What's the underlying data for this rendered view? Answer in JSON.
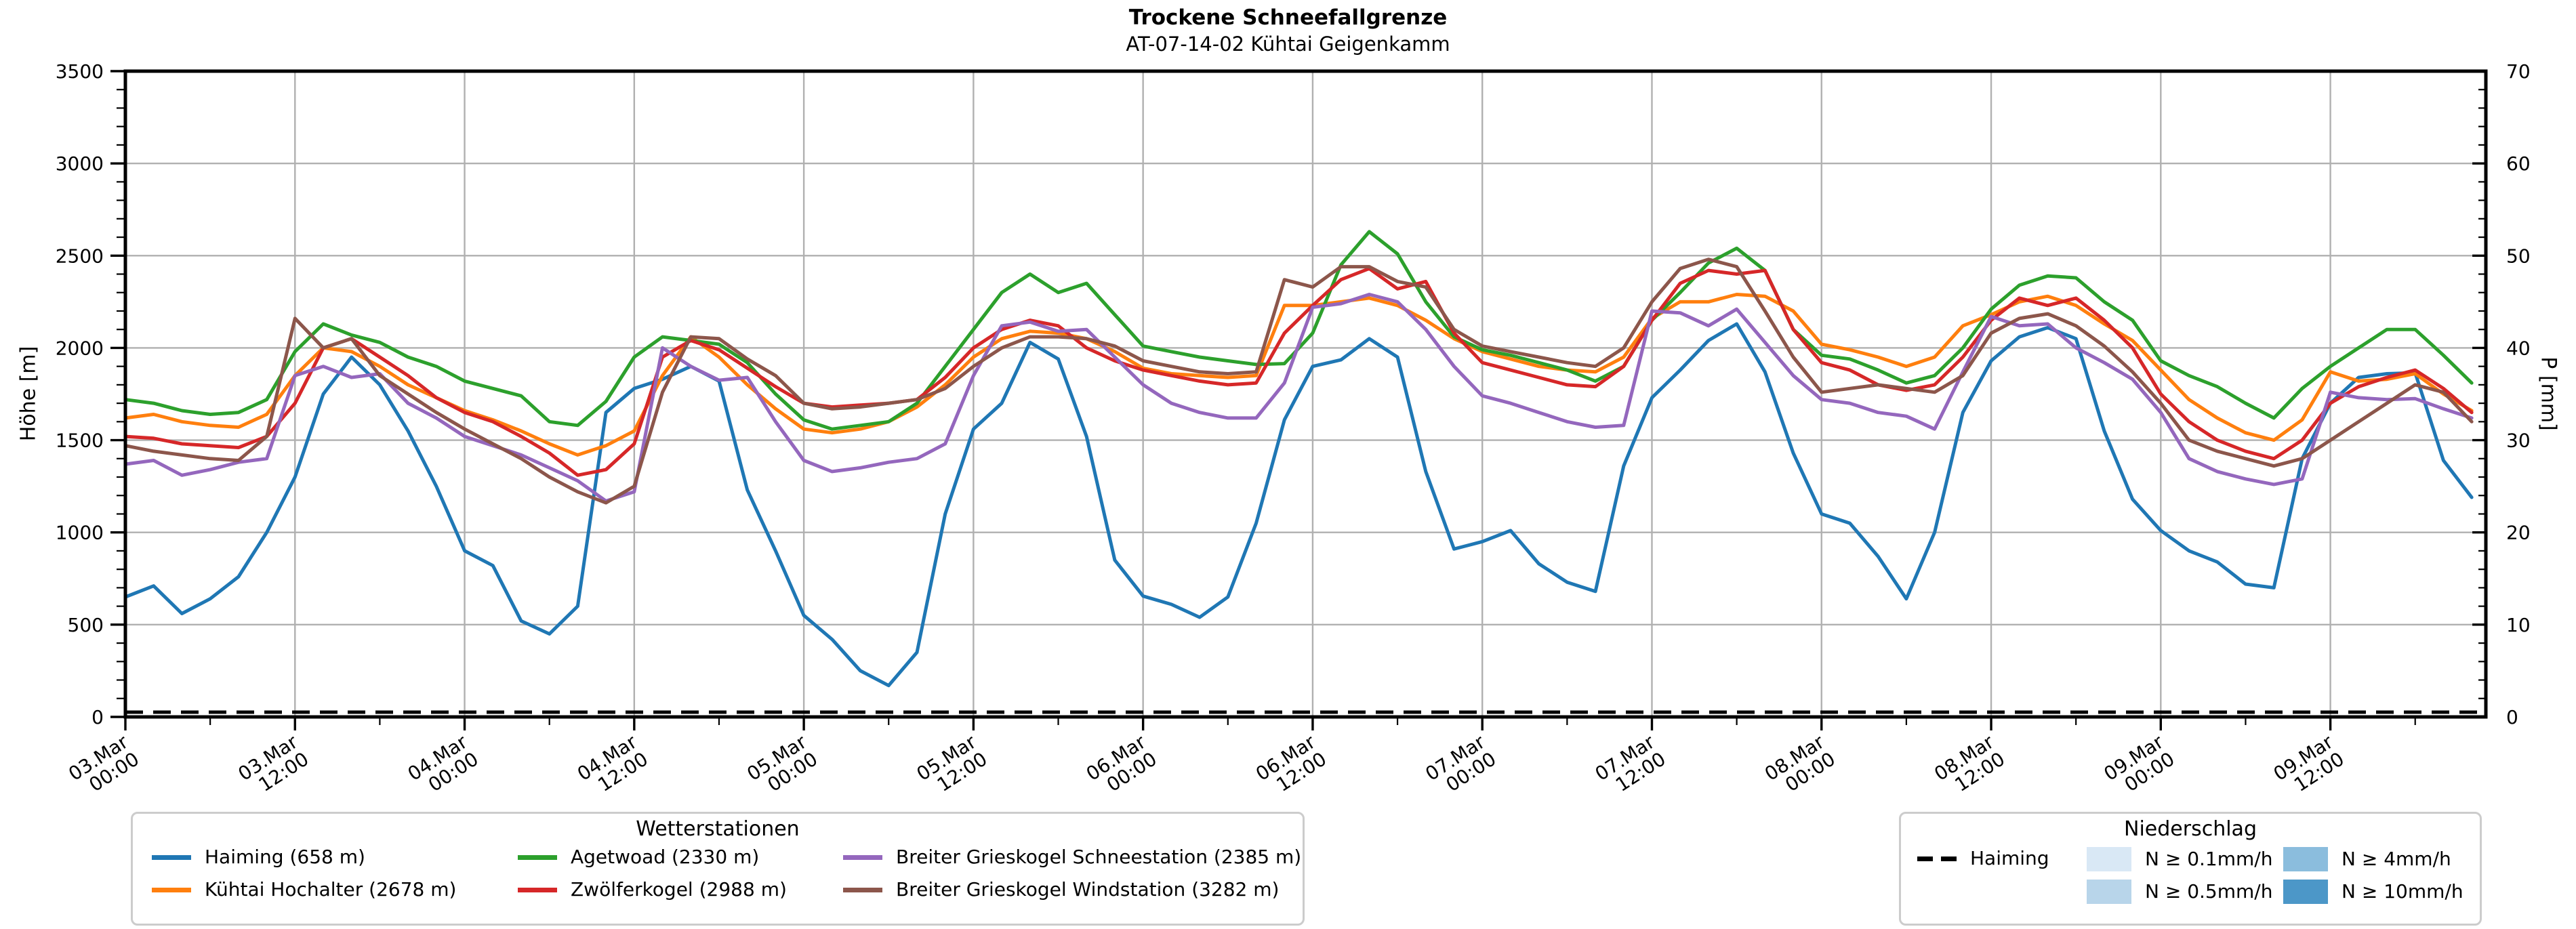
{
  "header": {
    "title": "Trockene Schneefallgrenze",
    "subtitle": "AT-07-14-02 Kühtai Geigenkamm"
  },
  "chart_data": {
    "type": "line",
    "title": "Trockene Schneefallgrenze",
    "subtitle": "AT-07-14-02 Kühtai Geigenkamm",
    "grid": true,
    "x": {
      "start": "03.Mar 00:00",
      "end_hour": 167,
      "major_tick_interval_hours": 12,
      "minor_tick_interval_hours": 6,
      "tick_labels": [
        {
          "d": "03.Mar",
          "t": "00:00"
        },
        {
          "d": "03.Mar",
          "t": "12:00"
        },
        {
          "d": "04.Mar",
          "t": "00:00"
        },
        {
          "d": "04.Mar",
          "t": "12:00"
        },
        {
          "d": "05.Mar",
          "t": "00:00"
        },
        {
          "d": "05.Mar",
          "t": "12:00"
        },
        {
          "d": "06.Mar",
          "t": "00:00"
        },
        {
          "d": "06.Mar",
          "t": "12:00"
        },
        {
          "d": "07.Mar",
          "t": "00:00"
        },
        {
          "d": "07.Mar",
          "t": "12:00"
        },
        {
          "d": "08.Mar",
          "t": "00:00"
        },
        {
          "d": "08.Mar",
          "t": "12:00"
        },
        {
          "d": "09.Mar",
          "t": "00:00"
        },
        {
          "d": "09.Mar",
          "t": "12:00"
        }
      ]
    },
    "y_left": {
      "label": "Höhe [m]",
      "min": 0,
      "max": 3500,
      "tick_step": 500,
      "minor_step": 100
    },
    "y_right": {
      "label": "P [mm]",
      "min": 0,
      "max": 70,
      "tick_step": 10,
      "minor_step": 2
    },
    "grid_color": "#b0b0b0",
    "sample_step_hours": 2,
    "series": [
      {
        "id": "haiming",
        "name": "Haiming (658 m)",
        "color": "#1f77b4",
        "values": [
          650,
          710,
          560,
          640,
          760,
          1000,
          1300,
          1750,
          1950,
          1800,
          1550,
          1250,
          900,
          820,
          520,
          450,
          600,
          1650,
          1780,
          1830,
          1900,
          1820,
          1230,
          900,
          550,
          420,
          250,
          170,
          350,
          1100,
          1560,
          1700,
          2030,
          1940,
          1520,
          850,
          655,
          610,
          540,
          650,
          1050,
          1610,
          1900,
          1935,
          2050,
          1950,
          1330,
          910,
          950,
          1010,
          830,
          730,
          680,
          1360,
          1730,
          1880,
          2040,
          2130,
          1870,
          1430,
          1100,
          1050,
          870,
          640,
          1000,
          1650,
          1930,
          2060,
          2110,
          2050,
          1550,
          1180,
          1010,
          900,
          840,
          720,
          700,
          1400,
          1700,
          1840,
          1860,
          1865,
          1390,
          1190
        ]
      },
      {
        "id": "kuehtai-hochalter",
        "name": "Kühtai Hochalter (2678 m)",
        "color": "#ff7f0e",
        "values": [
          1620,
          1640,
          1600,
          1580,
          1570,
          1640,
          1850,
          2000,
          1980,
          1900,
          1800,
          1730,
          1660,
          1610,
          1550,
          1480,
          1420,
          1470,
          1550,
          1850,
          2060,
          1950,
          1800,
          1670,
          1560,
          1540,
          1560,
          1600,
          1680,
          1800,
          1950,
          2050,
          2090,
          2080,
          2050,
          1980,
          1890,
          1860,
          1850,
          1840,
          1850,
          2230,
          2230,
          2250,
          2270,
          2230,
          2150,
          2050,
          1980,
          1940,
          1900,
          1880,
          1870,
          1950,
          2160,
          2250,
          2250,
          2290,
          2280,
          2200,
          2020,
          1990,
          1950,
          1900,
          1950,
          2120,
          2180,
          2250,
          2280,
          2230,
          2130,
          2040,
          1880,
          1720,
          1620,
          1540,
          1500,
          1610,
          1870,
          1820,
          1830,
          1860,
          1750,
          1660
        ]
      },
      {
        "id": "agetwoad",
        "name": "Agetwoad (2330 m)",
        "color": "#2ca02c",
        "values": [
          1720,
          1700,
          1660,
          1640,
          1650,
          1720,
          1980,
          2130,
          2070,
          2030,
          1950,
          1900,
          1820,
          1780,
          1740,
          1600,
          1580,
          1710,
          1950,
          2060,
          2040,
          2020,
          1920,
          1750,
          1610,
          1560,
          1580,
          1600,
          1700,
          1900,
          2100,
          2300,
          2400,
          2300,
          2350,
          2180,
          2010,
          1980,
          1950,
          1930,
          1910,
          1915,
          2080,
          2450,
          2630,
          2510,
          2250,
          2060,
          1990,
          1960,
          1920,
          1880,
          1820,
          1900,
          2150,
          2300,
          2460,
          2540,
          2420,
          2100,
          1960,
          1940,
          1880,
          1810,
          1850,
          2000,
          2210,
          2340,
          2390,
          2380,
          2250,
          2150,
          1930,
          1850,
          1790,
          1700,
          1620,
          1780,
          1900,
          2000,
          2100,
          2100,
          1960,
          1810
        ]
      },
      {
        "id": "zwoelferkogel",
        "name": "Zwölferkogel (2988 m)",
        "color": "#d62728",
        "values": [
          1520,
          1510,
          1480,
          1470,
          1460,
          1520,
          1700,
          2000,
          2050,
          1950,
          1850,
          1730,
          1650,
          1600,
          1520,
          1430,
          1310,
          1340,
          1480,
          1950,
          2040,
          1990,
          1890,
          1790,
          1700,
          1680,
          1690,
          1700,
          1720,
          1840,
          2000,
          2100,
          2150,
          2120,
          2000,
          1930,
          1880,
          1850,
          1820,
          1800,
          1810,
          2080,
          2230,
          2370,
          2430,
          2320,
          2360,
          2080,
          1920,
          1880,
          1840,
          1800,
          1790,
          1900,
          2150,
          2350,
          2420,
          2400,
          2420,
          2100,
          1920,
          1880,
          1800,
          1770,
          1800,
          1950,
          2150,
          2270,
          2230,
          2270,
          2150,
          2000,
          1750,
          1600,
          1500,
          1440,
          1400,
          1500,
          1700,
          1790,
          1840,
          1880,
          1780,
          1650
        ]
      },
      {
        "id": "bg-schneestation",
        "name": "Breiter Grieskogel Schneestation (2385 m)",
        "color": "#9467bd",
        "values": [
          1370,
          1390,
          1310,
          1340,
          1380,
          1400,
          1850,
          1900,
          1840,
          1860,
          1700,
          1620,
          1520,
          1470,
          1420,
          1350,
          1280,
          1170,
          1220,
          2000,
          1900,
          1825,
          1840,
          1600,
          1390,
          1330,
          1350,
          1380,
          1400,
          1480,
          1850,
          2120,
          2140,
          2090,
          2100,
          1950,
          1800,
          1700,
          1650,
          1620,
          1620,
          1810,
          2220,
          2240,
          2290,
          2250,
          2100,
          1900,
          1740,
          1700,
          1650,
          1600,
          1570,
          1580,
          2200,
          2190,
          2120,
          2210,
          2030,
          1850,
          1720,
          1700,
          1650,
          1630,
          1560,
          1870,
          2170,
          2120,
          2130,
          2000,
          1920,
          1830,
          1650,
          1400,
          1330,
          1290,
          1260,
          1290,
          1760,
          1730,
          1720,
          1725,
          1670,
          1620
        ]
      },
      {
        "id": "bg-windstation",
        "name": "Breiter Grieskogel Windstation (3282 m)",
        "color": "#8c564b",
        "values": [
          1470,
          1440,
          1420,
          1400,
          1390,
          1520,
          2160,
          2000,
          2050,
          1850,
          1750,
          1650,
          1560,
          1480,
          1400,
          1300,
          1220,
          1160,
          1250,
          1760,
          2060,
          2050,
          1940,
          1850,
          1700,
          1670,
          1680,
          1700,
          1720,
          1780,
          1900,
          2000,
          2060,
          2060,
          2050,
          2010,
          1930,
          1900,
          1870,
          1860,
          1870,
          2370,
          2330,
          2440,
          2440,
          2360,
          2330,
          2100,
          2010,
          1980,
          1950,
          1920,
          1900,
          2000,
          2250,
          2430,
          2480,
          2440,
          2200,
          1950,
          1760,
          1780,
          1800,
          1780,
          1760,
          1850,
          2080,
          2160,
          2185,
          2120,
          2010,
          1870,
          1700,
          1500,
          1440,
          1400,
          1360,
          1400,
          1500,
          1600,
          1700,
          1800,
          1760,
          1600
        ]
      }
    ],
    "precip_series": {
      "name": "Haiming",
      "axis": "right",
      "style": "dashed",
      "color": "#000000",
      "constant_value_mm": 0
    }
  },
  "legend_stations": {
    "title": "Wetterstationen",
    "items": [
      {
        "label": "Haiming (658 m)",
        "color": "#1f77b4"
      },
      {
        "label": "Agetwoad (2330 m)",
        "color": "#2ca02c"
      },
      {
        "label": "Breiter Grieskogel Schneestation (2385 m)",
        "color": "#9467bd"
      },
      {
        "label": "Kühtai Hochalter (2678 m)",
        "color": "#ff7f0e"
      },
      {
        "label": "Zwölferkogel (2988 m)",
        "color": "#d62728"
      },
      {
        "label": "Breiter Grieskogel Windstation (3282 m)",
        "color": "#8c564b"
      }
    ]
  },
  "legend_precip": {
    "title": "Niederschlag",
    "line_item": {
      "label": "Haiming",
      "color": "#000000"
    },
    "patch_items": [
      {
        "label": "N ≥ 0.1mm/h",
        "color": "#d9e8f5"
      },
      {
        "label": "N ≥ 0.5mm/h",
        "color": "#b8d5ea"
      },
      {
        "label": "N ≥ 4mm/h",
        "color": "#8bbddd"
      },
      {
        "label": "N ≥ 10mm/h",
        "color": "#4c97c8"
      }
    ]
  }
}
